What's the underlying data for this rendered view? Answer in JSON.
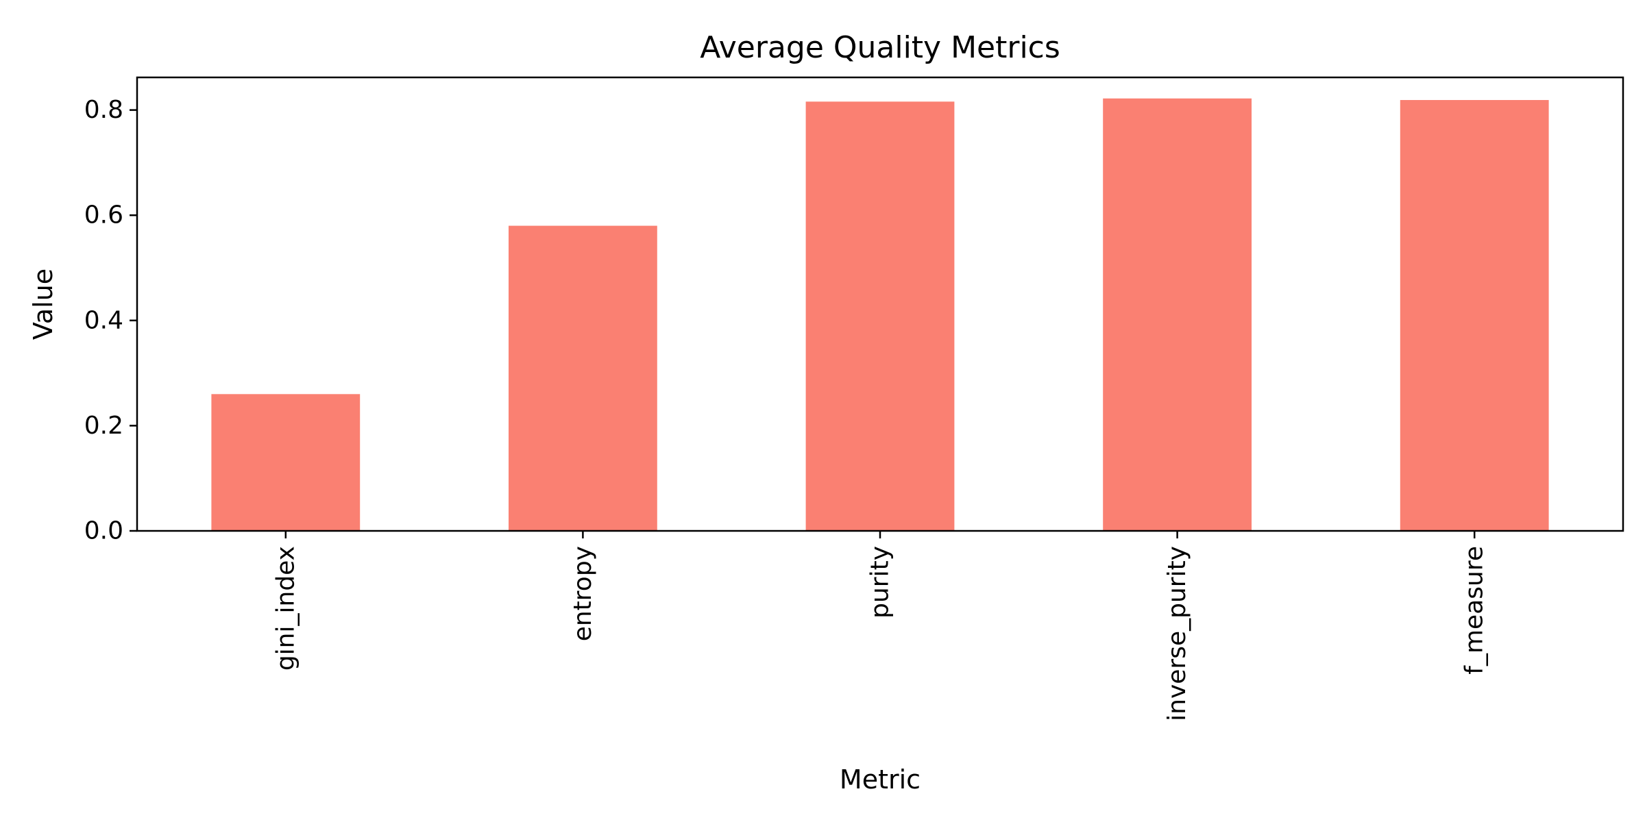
{
  "chart_data": {
    "type": "bar",
    "title": "Average Quality Metrics",
    "xlabel": "Metric",
    "ylabel": "Value",
    "categories": [
      "gini_index",
      "entropy",
      "purity",
      "inverse_purity",
      "f_measure"
    ],
    "values": [
      0.26,
      0.58,
      0.816,
      0.822,
      0.819
    ],
    "ylim": [
      0,
      0.862
    ],
    "yticks": [
      "0.0",
      "0.2",
      "0.4",
      "0.6",
      "0.8"
    ],
    "bar_color": "#fa8072",
    "grid": false,
    "legend": "none"
  }
}
